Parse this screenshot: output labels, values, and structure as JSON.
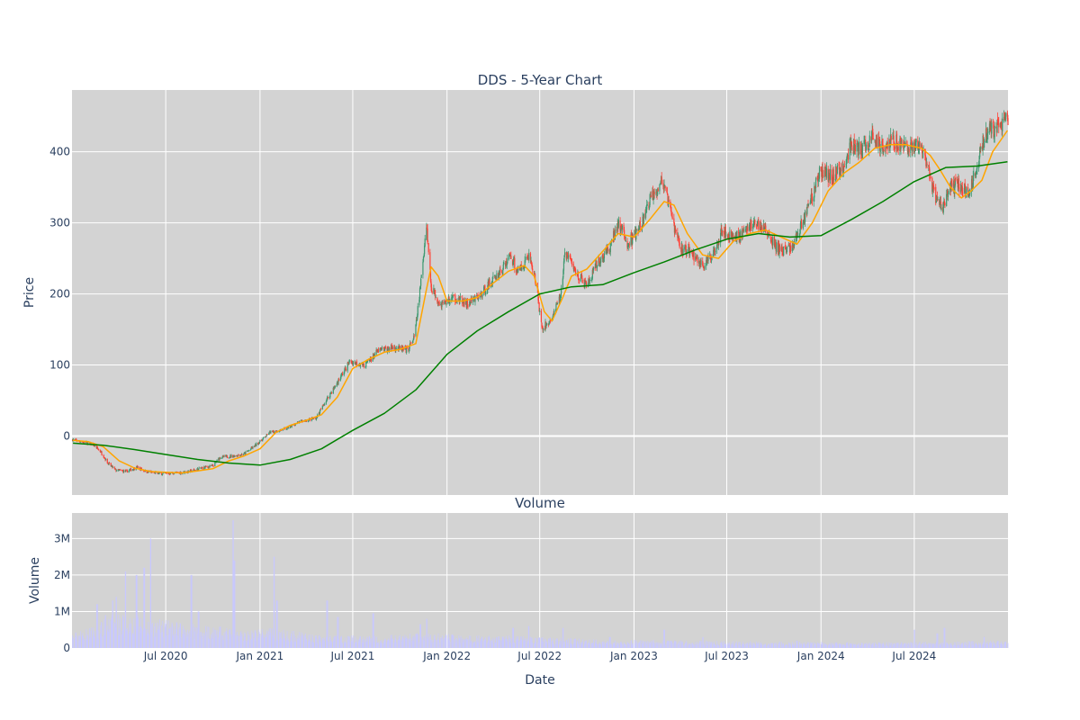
{
  "chart_data": [
    {
      "type": "candlestick",
      "title": "DDS - 5-Year Chart",
      "ylabel": "Price",
      "ylim": [
        -83,
        487
      ],
      "yticks": [
        0,
        100,
        200,
        300,
        400
      ],
      "xlim": [
        "2019-12-31",
        "2024-12-31"
      ],
      "grid": true,
      "legend": "none",
      "colors": {
        "increasing": "#3d9970",
        "decreasing": "#ff4136",
        "ma_short": "#ffa500",
        "ma_long": "#008000",
        "plot_bg": "#d3d3d3",
        "grid": "#ffffff"
      },
      "price_path": [
        [
          "2020-01-02",
          -5
        ],
        [
          "2020-01-20",
          -8
        ],
        [
          "2020-02-10",
          -12
        ],
        [
          "2020-02-25",
          -22
        ],
        [
          "2020-03-10",
          -38
        ],
        [
          "2020-03-25",
          -48
        ],
        [
          "2020-04-15",
          -50
        ],
        [
          "2020-05-05",
          -44
        ],
        [
          "2020-05-25",
          -50
        ],
        [
          "2020-06-20",
          -53
        ],
        [
          "2020-07-25",
          -52
        ],
        [
          "2020-08-15",
          -50
        ],
        [
          "2020-09-10",
          -45
        ],
        [
          "2020-10-01",
          -42
        ],
        [
          "2020-10-15",
          -30
        ],
        [
          "2020-11-10",
          -28
        ],
        [
          "2020-12-01",
          -25
        ],
        [
          "2020-12-20",
          -15
        ],
        [
          "2021-01-05",
          -5
        ],
        [
          "2021-01-20",
          5
        ],
        [
          "2021-02-20",
          10
        ],
        [
          "2021-03-20",
          20
        ],
        [
          "2021-04-20",
          25
        ],
        [
          "2021-05-10",
          50
        ],
        [
          "2021-06-05",
          80
        ],
        [
          "2021-06-25",
          105
        ],
        [
          "2021-07-25",
          100
        ],
        [
          "2021-08-20",
          120
        ],
        [
          "2021-09-20",
          125
        ],
        [
          "2021-10-15",
          120
        ],
        [
          "2021-10-30",
          140
        ],
        [
          "2021-11-10",
          210
        ],
        [
          "2021-11-22",
          300
        ],
        [
          "2021-12-01",
          210
        ],
        [
          "2021-12-20",
          185
        ],
        [
          "2022-01-15",
          195
        ],
        [
          "2022-02-10",
          185
        ],
        [
          "2022-03-10",
          200
        ],
        [
          "2022-03-25",
          215
        ],
        [
          "2022-04-20",
          235
        ],
        [
          "2022-05-05",
          255
        ],
        [
          "2022-05-20",
          230
        ],
        [
          "2022-06-10",
          255
        ],
        [
          "2022-06-25",
          210
        ],
        [
          "2022-07-05",
          150
        ],
        [
          "2022-07-25",
          165
        ],
        [
          "2022-08-10",
          195
        ],
        [
          "2022-08-20",
          260
        ],
        [
          "2022-09-10",
          230
        ],
        [
          "2022-10-01",
          210
        ],
        [
          "2022-10-20",
          240
        ],
        [
          "2022-11-15",
          265
        ],
        [
          "2022-12-01",
          300
        ],
        [
          "2022-12-20",
          270
        ],
        [
          "2023-01-15",
          295
        ],
        [
          "2023-02-05",
          340
        ],
        [
          "2023-02-25",
          360
        ],
        [
          "2023-03-15",
          310
        ],
        [
          "2023-04-01",
          265
        ],
        [
          "2023-04-20",
          260
        ],
        [
          "2023-05-15",
          240
        ],
        [
          "2023-06-01",
          250
        ],
        [
          "2023-06-20",
          290
        ],
        [
          "2023-07-10",
          280
        ],
        [
          "2023-08-01",
          285
        ],
        [
          "2023-08-20",
          300
        ],
        [
          "2023-09-10",
          295
        ],
        [
          "2023-09-25",
          275
        ],
        [
          "2023-10-15",
          260
        ],
        [
          "2023-11-05",
          265
        ],
        [
          "2023-11-25",
          300
        ],
        [
          "2023-12-15",
          340
        ],
        [
          "2024-01-01",
          375
        ],
        [
          "2024-01-20",
          365
        ],
        [
          "2024-02-10",
          375
        ],
        [
          "2024-03-01",
          410
        ],
        [
          "2024-03-20",
          400
        ],
        [
          "2024-04-10",
          420
        ],
        [
          "2024-05-01",
          410
        ],
        [
          "2024-05-25",
          415
        ],
        [
          "2024-06-20",
          405
        ],
        [
          "2024-07-10",
          410
        ],
        [
          "2024-07-25",
          380
        ],
        [
          "2024-08-10",
          340
        ],
        [
          "2024-08-25",
          320
        ],
        [
          "2024-09-10",
          350
        ],
        [
          "2024-09-25",
          355
        ],
        [
          "2024-10-15",
          340
        ],
        [
          "2024-11-01",
          380
        ],
        [
          "2024-11-15",
          425
        ],
        [
          "2024-12-01",
          430
        ],
        [
          "2024-12-30",
          445
        ]
      ],
      "series": [
        {
          "type": "line",
          "color": "#ffa500",
          "x": [
            "2020-01-02",
            "2020-02-01",
            "2020-03-01",
            "2020-04-01",
            "2020-05-01",
            "2020-06-01",
            "2020-07-01",
            "2020-08-01",
            "2020-09-01",
            "2020-10-01",
            "2020-11-01",
            "2020-12-01",
            "2021-01-01",
            "2021-02-01",
            "2021-03-01",
            "2021-04-01",
            "2021-05-01",
            "2021-06-01",
            "2021-07-01",
            "2021-08-01",
            "2021-09-01",
            "2021-10-01",
            "2021-11-01",
            "2021-11-20",
            "2021-12-01",
            "2021-12-15",
            "2022-01-01",
            "2022-02-01",
            "2022-03-01",
            "2022-04-01",
            "2022-05-01",
            "2022-06-01",
            "2022-06-20",
            "2022-07-10",
            "2022-07-25",
            "2022-08-15",
            "2022-09-01",
            "2022-10-01",
            "2022-11-01",
            "2022-12-01",
            "2023-01-01",
            "2023-02-01",
            "2023-03-01",
            "2023-03-20",
            "2023-04-15",
            "2023-05-15",
            "2023-06-15",
            "2023-07-15",
            "2023-08-15",
            "2023-09-15",
            "2023-10-15",
            "2023-11-15",
            "2023-12-15",
            "2024-01-15",
            "2024-02-15",
            "2024-03-15",
            "2024-04-15",
            "2024-05-15",
            "2024-06-15",
            "2024-07-15",
            "2024-08-01",
            "2024-08-20",
            "2024-09-10",
            "2024-10-01",
            "2024-10-20",
            "2024-11-10",
            "2024-12-01",
            "2024-12-30"
          ],
          "y": [
            -6,
            -8,
            -15,
            -35,
            -45,
            -50,
            -51,
            -52,
            -49,
            -46,
            -35,
            -28,
            -18,
            5,
            15,
            22,
            30,
            55,
            95,
            108,
            118,
            122,
            130,
            200,
            238,
            225,
            190,
            190,
            195,
            215,
            232,
            240,
            225,
            175,
            162,
            195,
            225,
            235,
            260,
            285,
            280,
            305,
            330,
            325,
            285,
            255,
            250,
            275,
            285,
            290,
            280,
            270,
            300,
            345,
            370,
            385,
            405,
            410,
            410,
            405,
            395,
            375,
            350,
            335,
            345,
            360,
            400,
            430
          ]
        },
        {
          "type": "line",
          "color": "#008000",
          "x": [
            "2020-01-02",
            "2020-03-01",
            "2020-05-01",
            "2020-07-01",
            "2020-09-01",
            "2020-11-01",
            "2021-01-01",
            "2021-03-01",
            "2021-05-01",
            "2021-07-01",
            "2021-09-01",
            "2021-11-01",
            "2022-01-01",
            "2022-03-01",
            "2022-05-01",
            "2022-07-01",
            "2022-09-01",
            "2022-11-01",
            "2023-01-01",
            "2023-03-01",
            "2023-05-01",
            "2023-07-01",
            "2023-09-01",
            "2023-11-01",
            "2024-01-01",
            "2024-03-01",
            "2024-05-01",
            "2024-07-01",
            "2024-09-01",
            "2024-11-01",
            "2024-12-30"
          ],
          "y": [
            -10,
            -13,
            -19,
            -26,
            -33,
            -38,
            -41,
            -33,
            -18,
            8,
            32,
            65,
            115,
            148,
            175,
            200,
            210,
            213,
            230,
            245,
            262,
            277,
            285,
            280,
            282,
            305,
            330,
            358,
            378,
            380,
            386
          ]
        }
      ]
    },
    {
      "type": "bar",
      "title": "Volume",
      "xlabel": "Date",
      "ylabel": "Volume",
      "ylim": [
        0,
        3700000
      ],
      "yticks": [
        "0",
        "1M",
        "2M",
        "3M"
      ],
      "xticks": [
        "Jul 2020",
        "Jan 2021",
        "Jul 2021",
        "Jan 2022",
        "Jul 2022",
        "Jan 2023",
        "Jul 2023",
        "Jan 2024",
        "Jul 2024"
      ],
      "color": "#c8c8ff",
      "baseline_path": [
        [
          "2020-01-02",
          300000
        ],
        [
          "2020-02-15",
          450000
        ],
        [
          "2020-03-15",
          650000
        ],
        [
          "2020-04-15",
          700000
        ],
        [
          "2020-06-01",
          600000
        ],
        [
          "2020-08-01",
          500000
        ],
        [
          "2020-10-01",
          450000
        ],
        [
          "2020-12-01",
          350000
        ],
        [
          "2021-01-15",
          400000
        ],
        [
          "2021-03-01",
          350000
        ],
        [
          "2021-05-01",
          250000
        ],
        [
          "2021-07-01",
          250000
        ],
        [
          "2021-09-01",
          250000
        ],
        [
          "2021-11-01",
          300000
        ],
        [
          "2022-01-01",
          280000
        ],
        [
          "2022-03-01",
          250000
        ],
        [
          "2022-05-01",
          250000
        ],
        [
          "2022-07-01",
          220000
        ],
        [
          "2022-10-01",
          180000
        ],
        [
          "2023-01-01",
          160000
        ],
        [
          "2023-04-01",
          150000
        ],
        [
          "2023-07-01",
          140000
        ],
        [
          "2023-10-01",
          130000
        ],
        [
          "2024-01-01",
          120000
        ],
        [
          "2024-04-01",
          115000
        ],
        [
          "2024-07-01",
          120000
        ],
        [
          "2024-10-01",
          140000
        ],
        [
          "2024-12-30",
          150000
        ]
      ],
      "spikes": [
        [
          "2020-02-18",
          1200000
        ],
        [
          "2020-03-06",
          900000
        ],
        [
          "2020-03-20",
          1300000
        ],
        [
          "2020-03-27",
          1400000
        ],
        [
          "2020-04-13",
          2100000
        ],
        [
          "2020-05-05",
          2000000
        ],
        [
          "2020-05-20",
          2200000
        ],
        [
          "2020-06-01",
          3000000
        ],
        [
          "2020-08-20",
          2000000
        ],
        [
          "2020-09-03",
          1000000
        ],
        [
          "2020-11-09",
          3500000
        ],
        [
          "2020-11-12",
          2400000
        ],
        [
          "2021-01-29",
          2500000
        ],
        [
          "2021-02-03",
          1300000
        ],
        [
          "2021-05-12",
          1300000
        ],
        [
          "2021-06-02",
          850000
        ],
        [
          "2021-08-10",
          950000
        ],
        [
          "2021-11-10",
          650000
        ],
        [
          "2021-11-22",
          800000
        ],
        [
          "2022-05-10",
          550000
        ],
        [
          "2022-06-10",
          600000
        ],
        [
          "2022-08-15",
          550000
        ],
        [
          "2022-11-15",
          300000
        ],
        [
          "2023-03-01",
          500000
        ],
        [
          "2023-05-15",
          300000
        ],
        [
          "2023-11-15",
          200000
        ],
        [
          "2024-07-01",
          500000
        ],
        [
          "2024-08-15",
          400000
        ],
        [
          "2024-08-29",
          550000
        ],
        [
          "2024-11-15",
          300000
        ]
      ]
    }
  ]
}
